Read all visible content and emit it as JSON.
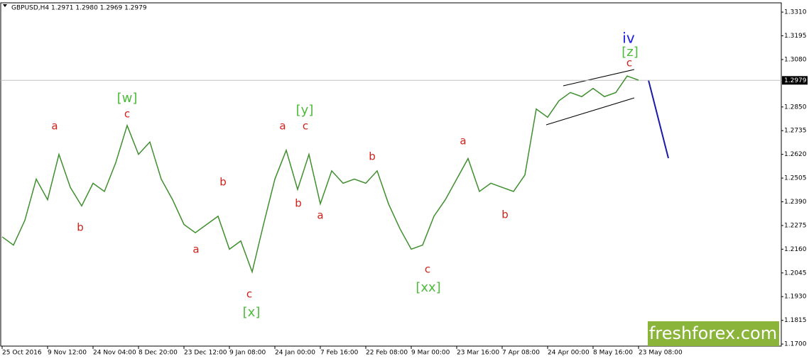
{
  "chart_data": {
    "type": "line",
    "title": "GBPUSD,H4  1.2971 1.2980 1.2969 1.2979",
    "categories": [
      "25 Oct 2016",
      null,
      null,
      null,
      "9 Nov 12:00",
      null,
      null,
      null,
      "24 Nov 04:00",
      null,
      null,
      null,
      "8 Dec 20:00",
      null,
      null,
      null,
      "23 Dec 12:00",
      null,
      null,
      null,
      "9 Jan 08:00",
      null,
      null,
      null,
      "24 Jan 00:00",
      null,
      null,
      null,
      "7 Feb 16:00",
      null,
      null,
      null,
      "22 Feb 08:00",
      null,
      null,
      null,
      "9 Mar 00:00",
      null,
      null,
      null,
      "23 Mar 16:00",
      null,
      null,
      null,
      "7 Apr 08:00",
      null,
      null,
      null,
      "24 Apr 00:00",
      null,
      null,
      null,
      "8 May 16:00",
      null,
      null,
      null,
      "23 May 08:00"
    ],
    "values": [
      1.222,
      1.218,
      1.23,
      1.25,
      1.24,
      1.262,
      1.246,
      1.237,
      1.248,
      1.244,
      1.258,
      1.276,
      1.262,
      1.268,
      1.25,
      1.24,
      1.228,
      1.224,
      1.228,
      1.232,
      1.216,
      1.22,
      1.205,
      1.228,
      1.25,
      1.264,
      1.245,
      1.262,
      1.238,
      1.254,
      1.248,
      1.25,
      1.248,
      1.254,
      1.238,
      1.226,
      1.216,
      1.218,
      1.232,
      1.24,
      1.25,
      1.26,
      1.244,
      1.248,
      1.246,
      1.244,
      1.252,
      1.284,
      1.28,
      1.288,
      1.292,
      1.29,
      1.294,
      1.29,
      1.292,
      1.3,
      1.298
    ],
    "color": "#3f8f2f",
    "ylim": [
      1.169,
      1.3355
    ],
    "yticks": [
      {
        "value": 1.17,
        "label": "1.1700"
      },
      {
        "value": 1.1815,
        "label": "1.1815"
      },
      {
        "value": 1.193,
        "label": "1.1930"
      },
      {
        "value": 1.2045,
        "label": "1.2045"
      },
      {
        "value": 1.216,
        "label": "1.2160"
      },
      {
        "value": 1.2275,
        "label": "1.2275"
      },
      {
        "value": 1.239,
        "label": "1.2390"
      },
      {
        "value": 1.2505,
        "label": "1.2505"
      },
      {
        "value": 1.262,
        "label": "1.2620"
      },
      {
        "value": 1.2735,
        "label": "1.2735"
      },
      {
        "value": 1.285,
        "label": "1.2850"
      },
      {
        "value": 1.308,
        "label": "1.3080"
      },
      {
        "value": 1.3195,
        "label": "1.3195"
      },
      {
        "value": 1.331,
        "label": "1.3310"
      }
    ],
    "current_price": 1.2979,
    "annotations": [
      "a",
      "b",
      "[w]",
      "c",
      "a",
      "b",
      "c",
      "[x]",
      "a",
      "[y]",
      "c",
      "b",
      "a",
      "b",
      "c",
      "[xx]",
      "a",
      "b",
      "iv",
      "[z]",
      "c"
    ],
    "watermark": "freshforex.com"
  }
}
